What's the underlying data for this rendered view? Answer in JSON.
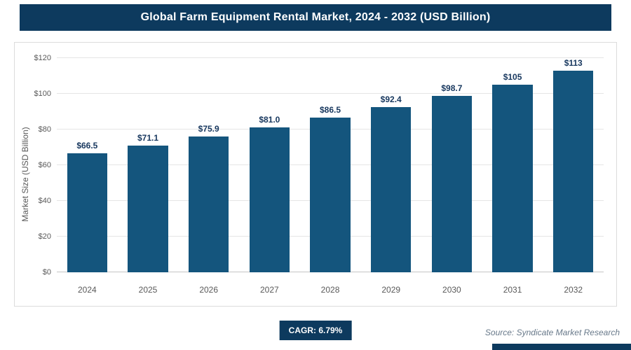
{
  "header": {
    "title": "Global Farm Equipment Rental Market, 2024 - 2032 (USD Billion)"
  },
  "chart_data": {
    "type": "bar",
    "categories": [
      "2024",
      "2025",
      "2026",
      "2027",
      "2028",
      "2029",
      "2030",
      "2031",
      "2032"
    ],
    "values": [
      66.5,
      71.1,
      75.9,
      81.0,
      86.5,
      92.4,
      98.7,
      105,
      113
    ],
    "labels": [
      "$66.5",
      "$71.1",
      "$75.9",
      "$81.0",
      "$86.5",
      "$92.4",
      "$98.7",
      "$105",
      "$113"
    ],
    "title": "Global Farm Equipment Rental Market, 2024 - 2032 (USD Billion)",
    "xlabel": "",
    "ylabel": "Market Size (USD Billion)",
    "ylim": [
      0,
      120
    ],
    "ytick_step": 20,
    "ytick_labels": [
      "$0",
      "$20",
      "$40",
      "$60",
      "$80",
      "$100",
      "$120"
    ],
    "grid": true,
    "legend": "none",
    "bar_color": "#14557d"
  },
  "footer": {
    "cagr_label": "CAGR: 6.79%",
    "source": "Source: Syndicate Market Research"
  },
  "colors": {
    "header_bg": "#0d3a5e",
    "bar": "#14557d",
    "accent_bar": "#0d3a5e",
    "value_label": "#17375e",
    "axis_text": "#595959"
  }
}
